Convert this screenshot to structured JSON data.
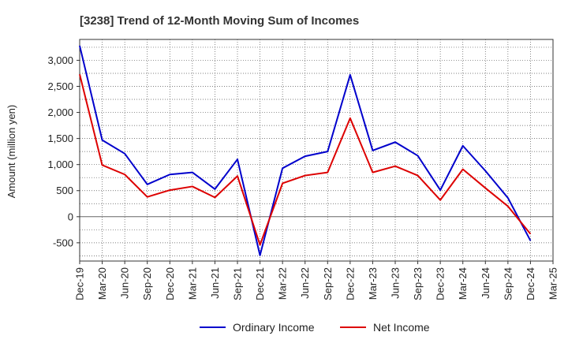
{
  "chart_data": {
    "type": "line",
    "title": "[3238]  Trend of 12-Month Moving Sum of Incomes",
    "xlabel": "",
    "ylabel": "Amount (million yen)",
    "categories": [
      "Dec-19",
      "Mar-20",
      "Jun-20",
      "Sep-20",
      "Dec-20",
      "Mar-21",
      "Jun-21",
      "Sep-21",
      "Dec-21",
      "Mar-22",
      "Jun-22",
      "Sep-22",
      "Dec-22",
      "Mar-23",
      "Jun-23",
      "Sep-23",
      "Dec-23",
      "Mar-24",
      "Jun-24",
      "Sep-24",
      "Dec-24",
      "Mar-25"
    ],
    "yticks": [
      "-500",
      "0",
      "500",
      "1,000",
      "1,500",
      "2,000",
      "2,500",
      "3,000"
    ],
    "ylim": [
      -850,
      3400
    ],
    "grid": true,
    "legend_position": "bottom",
    "series": [
      {
        "name": "Ordinary Income",
        "color": "#0000cc",
        "values": [
          3280,
          1470,
          1210,
          620,
          810,
          850,
          530,
          1100,
          -740,
          930,
          1160,
          1250,
          2720,
          1270,
          1430,
          1170,
          510,
          1360,
          880,
          360,
          -460,
          null
        ]
      },
      {
        "name": "Net Income",
        "color": "#dd0000",
        "values": [
          2730,
          990,
          810,
          380,
          510,
          580,
          370,
          780,
          -540,
          640,
          790,
          850,
          1890,
          850,
          970,
          790,
          320,
          910,
          550,
          200,
          -330,
          null
        ]
      }
    ]
  }
}
